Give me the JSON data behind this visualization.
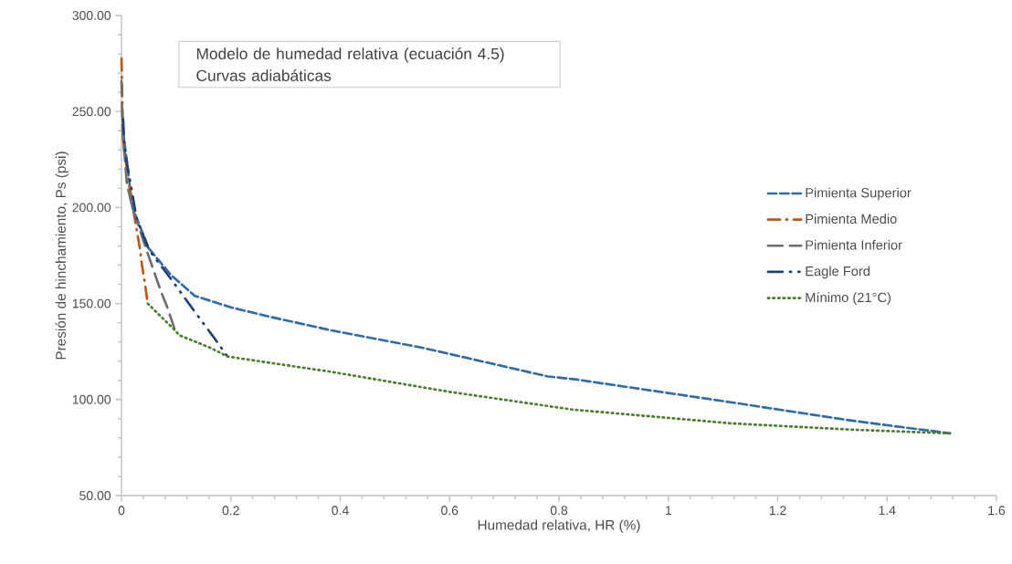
{
  "chart_data": {
    "type": "line",
    "title": "Modelo de humedad relativa (ecuación 4.5)",
    "subtitle": "Curvas adiabáticas",
    "xlabel": "Humedad relativa, HR (%)",
    "ylabel": "Presión de hinchamiento, Ps (psi)",
    "xlim": [
      0,
      1.6
    ],
    "xticks": [
      0,
      0.2,
      0.4,
      0.6,
      0.8,
      1,
      1.2,
      1.4,
      1.6
    ],
    "ylim": [
      50,
      300
    ],
    "yticks": [
      {
        "value": 50,
        "label": "50.00"
      },
      {
        "value": 100,
        "label": "100.00"
      },
      {
        "value": 150,
        "label": "150.00"
      },
      {
        "value": 200,
        "label": "200.00"
      },
      {
        "value": 250,
        "label": "250.00"
      },
      {
        "value": 300,
        "label": "300.00"
      }
    ],
    "grid": false,
    "legend": "right",
    "marker": "none",
    "series": [
      {
        "name": "Pimienta Superior",
        "color": "#2e6ca6",
        "line_style": "dashed",
        "x": [
          0.003,
          0.02,
          0.05,
          0.09,
          0.134,
          0.2,
          0.273,
          0.384,
          0.55,
          0.78,
          0.83,
          1.114,
          1.336,
          1.515
        ],
        "values": [
          240,
          200,
          178.7,
          165,
          154,
          148,
          143,
          136,
          127,
          112,
          110.5,
          98.6,
          89,
          82.4
        ]
      },
      {
        "name": "Pimienta Medio",
        "color": "#c0560f",
        "line_style": "dashed",
        "x": [
          0,
          0.003,
          0.012,
          0.034,
          0.037,
          0.042,
          0.048
        ],
        "values": [
          277.6,
          235,
          215,
          178,
          171,
          162,
          150
        ]
      },
      {
        "name": "Pimienta Inferior",
        "color": "#6e6e6e",
        "line_style": "dashed",
        "x": [
          0,
          0.002,
          0.01,
          0.02,
          0.048,
          0.073,
          0.084,
          0.098
        ],
        "values": [
          266,
          240,
          212,
          200,
          176,
          155.7,
          147.8,
          136
        ]
      },
      {
        "name": "Eagle Ford",
        "color": "#243f73",
        "line_style": "dashed",
        "x": [
          0.003,
          0.006,
          0.028,
          0.05,
          0.09,
          0.134,
          0.168,
          0.194
        ],
        "values": [
          246,
          229.5,
          194,
          178,
          163,
          145.7,
          132.7,
          122.4
        ]
      },
      {
        "name": "Mínimo (21°C)",
        "color": "#4e7a2e",
        "line_style": "dotted",
        "x": [
          0.048,
          0.098,
          0.106,
          0.162,
          0.194,
          0.384,
          0.6,
          0.824,
          1.114,
          1.336,
          1.515
        ],
        "values": [
          150,
          136,
          133.5,
          127,
          122.4,
          114.4,
          104,
          94.8,
          87.6,
          84.3,
          82.4
        ]
      }
    ]
  }
}
